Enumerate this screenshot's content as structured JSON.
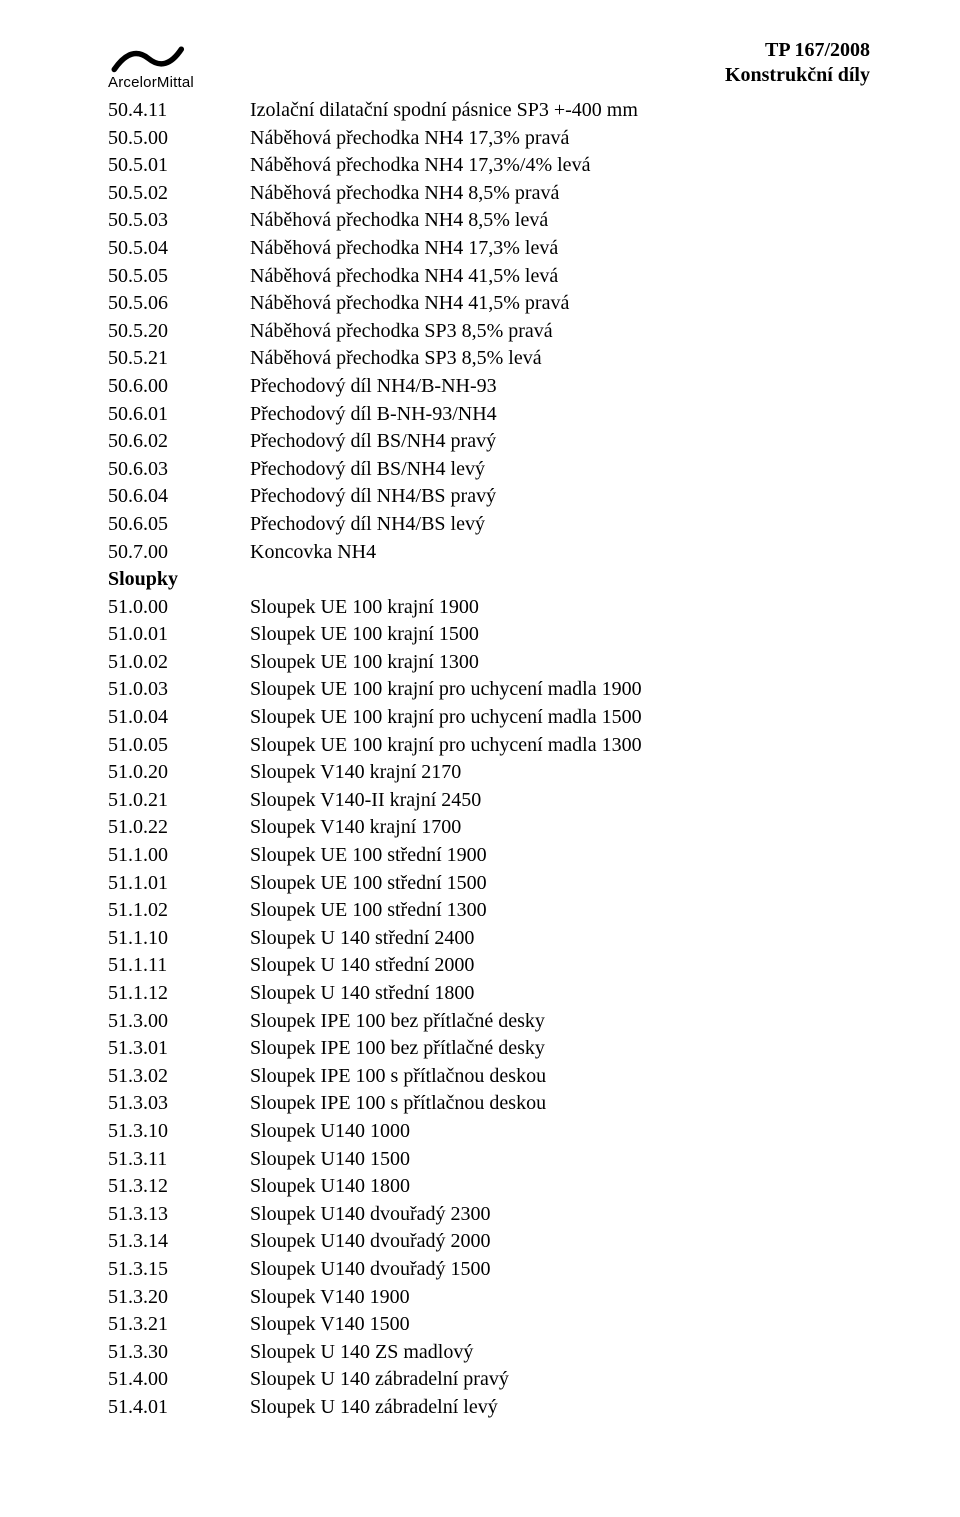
{
  "header": {
    "logo_text": "ArcelorMittal",
    "doc_line1": "TP 167/2008",
    "doc_line2": "Konstrukční díly"
  },
  "rows": [
    {
      "code": "50.4.11",
      "desc": "Izolační dilatační spodní pásnice SP3 +-400 mm"
    },
    {
      "code": "50.5.00",
      "desc": "Náběhová přechodka NH4 17,3% pravá"
    },
    {
      "code": "50.5.01",
      "desc": "Náběhová přechodka NH4 17,3%/4% levá"
    },
    {
      "code": "50.5.02",
      "desc": "Náběhová přechodka NH4 8,5% pravá"
    },
    {
      "code": "50.5.03",
      "desc": "Náběhová přechodka NH4 8,5% levá"
    },
    {
      "code": "50.5.04",
      "desc": "Náběhová přechodka NH4 17,3% levá"
    },
    {
      "code": "50.5.05",
      "desc": "Náběhová přechodka NH4 41,5% levá"
    },
    {
      "code": "50.5.06",
      "desc": "Náběhová přechodka NH4 41,5% pravá"
    },
    {
      "code": "50.5.20",
      "desc": "Náběhová přechodka SP3 8,5% pravá"
    },
    {
      "code": "50.5.21",
      "desc": "Náběhová přechodka SP3 8,5% levá"
    },
    {
      "code": "50.6.00",
      "desc": "Přechodový díl NH4/B-NH-93"
    },
    {
      "code": "50.6.01",
      "desc": "Přechodový díl B-NH-93/NH4"
    },
    {
      "code": "50.6.02",
      "desc": "Přechodový díl BS/NH4 pravý"
    },
    {
      "code": "50.6.03",
      "desc": "Přechodový díl BS/NH4 levý"
    },
    {
      "code": "50.6.04",
      "desc": "Přechodový díl NH4/BS pravý"
    },
    {
      "code": "50.6.05",
      "desc": "Přechodový díl NH4/BS levý"
    },
    {
      "code": "50.7.00",
      "desc": "Koncovka NH4"
    },
    {
      "section": true,
      "label": "Sloupky"
    },
    {
      "code": "51.0.00",
      "desc": "Sloupek UE 100 krajní 1900"
    },
    {
      "code": "51.0.01",
      "desc": "Sloupek UE 100 krajní 1500"
    },
    {
      "code": "51.0.02",
      "desc": "Sloupek UE 100 krajní 1300"
    },
    {
      "code": "51.0.03",
      "desc": "Sloupek UE 100 krajní pro uchycení madla 1900"
    },
    {
      "code": "51.0.04",
      "desc": "Sloupek UE 100 krajní pro uchycení madla 1500"
    },
    {
      "code": "51.0.05",
      "desc": "Sloupek UE 100 krajní pro uchycení madla 1300"
    },
    {
      "code": "51.0.20",
      "desc": "Sloupek V140 krajní 2170"
    },
    {
      "code": "51.0.21",
      "desc": "Sloupek V140-II krajní 2450"
    },
    {
      "code": "51.0.22",
      "desc": "Sloupek V140 krajní 1700"
    },
    {
      "code": "51.1.00",
      "desc": "Sloupek UE 100 střední 1900"
    },
    {
      "code": "51.1.01",
      "desc": "Sloupek UE 100 střední 1500"
    },
    {
      "code": "51.1.02",
      "desc": "Sloupek UE 100 střední 1300"
    },
    {
      "code": "51.1.10",
      "desc": "Sloupek U 140 střední 2400"
    },
    {
      "code": "51.1.11",
      "desc": "Sloupek U 140 střední 2000"
    },
    {
      "code": "51.1.12",
      "desc": "Sloupek U 140 střední 1800"
    },
    {
      "code": "51.3.00",
      "desc": "Sloupek IPE 100 bez přítlačné desky"
    },
    {
      "code": "51.3.01",
      "desc": "Sloupek IPE 100 bez přítlačné desky"
    },
    {
      "code": "51.3.02",
      "desc": "Sloupek IPE 100 s přítlačnou deskou"
    },
    {
      "code": "51.3.03",
      "desc": "Sloupek IPE 100 s přítlačnou deskou"
    },
    {
      "code": "51.3.10",
      "desc": "Sloupek U140 1000"
    },
    {
      "code": "51.3.11",
      "desc": "Sloupek U140 1500"
    },
    {
      "code": "51.3.12",
      "desc": "Sloupek U140 1800"
    },
    {
      "code": "51.3.13",
      "desc": "Sloupek U140 dvouřadý 2300"
    },
    {
      "code": "51.3.14",
      "desc": "Sloupek U140 dvouřadý 2000"
    },
    {
      "code": "51.3.15",
      "desc": "Sloupek U140 dvouřadý 1500"
    },
    {
      "code": "51.3.20",
      "desc": "Sloupek V140 1900"
    },
    {
      "code": "51.3.21",
      "desc": "Sloupek V140 1500"
    },
    {
      "code": "51.3.30",
      "desc": "Sloupek U 140 ZS madlový"
    },
    {
      "code": "51.4.00",
      "desc": "Sloupek U 140 zábradelní pravý"
    },
    {
      "code": "51.4.01",
      "desc": "Sloupek U 140 zábradelní levý"
    }
  ]
}
